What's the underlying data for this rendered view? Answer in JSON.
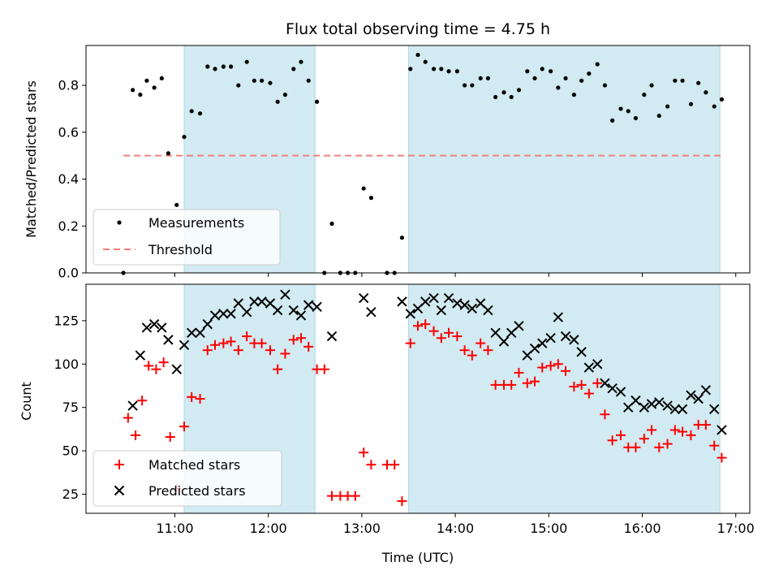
{
  "chart_data": {
    "title": "Flux total observing time = 4.75 h",
    "type": "scatter",
    "xlabel": "Time (UTC)",
    "xlim": [
      10.05,
      17.15
    ],
    "x_ticks": [
      {
        "value": 11,
        "label": "11:00"
      },
      {
        "value": 12,
        "label": "12:00"
      },
      {
        "value": 13,
        "label": "13:00"
      },
      {
        "value": 14,
        "label": "14:00"
      },
      {
        "value": 15,
        "label": "15:00"
      },
      {
        "value": 16,
        "label": "16:00"
      },
      {
        "value": 17,
        "label": "17:00"
      }
    ],
    "shaded_intervals": [
      [
        11.1,
        12.5
      ],
      [
        13.5,
        16.83
      ]
    ],
    "shade_color": "#add8e6",
    "top": {
      "ylabel": "Matched/Predicted stars",
      "ylim": [
        0,
        0.97
      ],
      "y_ticks": [
        0.0,
        0.2,
        0.4,
        0.6,
        0.8
      ],
      "y_tick_labels": [
        "0.0",
        "0.2",
        "0.4",
        "0.6",
        "0.8"
      ],
      "threshold": {
        "name": "Threshold",
        "value": 0.5,
        "x_range": [
          10.45,
          16.85
        ],
        "color": "#f08080"
      },
      "measurements": {
        "name": "Measurements",
        "color": "#000000",
        "points": [
          [
            10.45,
            0.0
          ],
          [
            10.55,
            0.78
          ],
          [
            10.63,
            0.76
          ],
          [
            10.7,
            0.82
          ],
          [
            10.78,
            0.79
          ],
          [
            10.86,
            0.83
          ],
          [
            10.93,
            0.51
          ],
          [
            11.02,
            0.29
          ],
          [
            11.1,
            0.58
          ],
          [
            11.18,
            0.69
          ],
          [
            11.27,
            0.68
          ],
          [
            11.35,
            0.88
          ],
          [
            11.43,
            0.87
          ],
          [
            11.52,
            0.88
          ],
          [
            11.6,
            0.88
          ],
          [
            11.68,
            0.8
          ],
          [
            11.77,
            0.9
          ],
          [
            11.85,
            0.82
          ],
          [
            11.93,
            0.82
          ],
          [
            12.02,
            0.81
          ],
          [
            12.1,
            0.73
          ],
          [
            12.18,
            0.76
          ],
          [
            12.27,
            0.87
          ],
          [
            12.35,
            0.9
          ],
          [
            12.43,
            0.82
          ],
          [
            12.52,
            0.73
          ],
          [
            12.6,
            0.0
          ],
          [
            12.68,
            0.21
          ],
          [
            12.77,
            0.0
          ],
          [
            12.85,
            0.0
          ],
          [
            12.93,
            0.0
          ],
          [
            13.02,
            0.36
          ],
          [
            13.1,
            0.32
          ],
          [
            13.27,
            0.0
          ],
          [
            13.35,
            0.0
          ],
          [
            13.43,
            0.15
          ],
          [
            13.52,
            0.87
          ],
          [
            13.6,
            0.93
          ],
          [
            13.68,
            0.9
          ],
          [
            13.77,
            0.87
          ],
          [
            13.85,
            0.87
          ],
          [
            13.93,
            0.86
          ],
          [
            14.02,
            0.86
          ],
          [
            14.1,
            0.8
          ],
          [
            14.18,
            0.8
          ],
          [
            14.27,
            0.83
          ],
          [
            14.35,
            0.83
          ],
          [
            14.43,
            0.75
          ],
          [
            14.52,
            0.77
          ],
          [
            14.6,
            0.75
          ],
          [
            14.68,
            0.78
          ],
          [
            14.77,
            0.86
          ],
          [
            14.85,
            0.83
          ],
          [
            14.93,
            0.87
          ],
          [
            15.02,
            0.86
          ],
          [
            15.1,
            0.79
          ],
          [
            15.18,
            0.83
          ],
          [
            15.27,
            0.76
          ],
          [
            15.35,
            0.82
          ],
          [
            15.43,
            0.85
          ],
          [
            15.52,
            0.89
          ],
          [
            15.6,
            0.8
          ],
          [
            15.68,
            0.65
          ],
          [
            15.77,
            0.7
          ],
          [
            15.85,
            0.69
          ],
          [
            15.93,
            0.66
          ],
          [
            16.02,
            0.76
          ],
          [
            16.1,
            0.8
          ],
          [
            16.18,
            0.67
          ],
          [
            16.27,
            0.71
          ],
          [
            16.35,
            0.82
          ],
          [
            16.43,
            0.82
          ],
          [
            16.52,
            0.72
          ],
          [
            16.6,
            0.81
          ],
          [
            16.68,
            0.77
          ],
          [
            16.77,
            0.71
          ],
          [
            16.85,
            0.74
          ]
        ]
      }
    },
    "bottom": {
      "ylabel": "Count",
      "ylim": [
        14,
        146
      ],
      "y_ticks": [
        25,
        50,
        75,
        100,
        125
      ],
      "matched": {
        "name": "Matched stars",
        "color": "#ff0000",
        "points": [
          [
            10.5,
            69
          ],
          [
            10.58,
            59
          ],
          [
            10.65,
            79
          ],
          [
            10.72,
            99
          ],
          [
            10.8,
            97
          ],
          [
            10.88,
            101
          ],
          [
            10.95,
            58
          ],
          [
            11.02,
            28
          ],
          [
            11.1,
            64
          ],
          [
            11.18,
            81
          ],
          [
            11.27,
            80
          ],
          [
            11.35,
            108
          ],
          [
            11.43,
            111
          ],
          [
            11.52,
            112
          ],
          [
            11.6,
            113
          ],
          [
            11.68,
            108
          ],
          [
            11.77,
            116
          ],
          [
            11.85,
            112
          ],
          [
            11.93,
            112
          ],
          [
            12.02,
            108
          ],
          [
            12.1,
            97
          ],
          [
            12.18,
            106
          ],
          [
            12.27,
            114
          ],
          [
            12.35,
            115
          ],
          [
            12.43,
            110
          ],
          [
            12.52,
            97
          ],
          [
            12.6,
            97
          ],
          [
            12.68,
            24
          ],
          [
            12.77,
            24
          ],
          [
            12.85,
            24
          ],
          [
            12.93,
            24
          ],
          [
            13.02,
            49
          ],
          [
            13.1,
            42
          ],
          [
            13.27,
            42
          ],
          [
            13.35,
            42
          ],
          [
            13.43,
            21
          ],
          [
            13.52,
            112
          ],
          [
            13.6,
            122
          ],
          [
            13.68,
            123
          ],
          [
            13.77,
            119
          ],
          [
            13.85,
            115
          ],
          [
            13.93,
            118
          ],
          [
            14.02,
            116
          ],
          [
            14.1,
            108
          ],
          [
            14.18,
            105
          ],
          [
            14.27,
            112
          ],
          [
            14.35,
            108
          ],
          [
            14.43,
            88
          ],
          [
            14.52,
            88
          ],
          [
            14.6,
            88
          ],
          [
            14.68,
            95
          ],
          [
            14.77,
            89
          ],
          [
            14.85,
            90
          ],
          [
            14.93,
            98
          ],
          [
            15.02,
            99
          ],
          [
            15.1,
            100
          ],
          [
            15.18,
            96
          ],
          [
            15.27,
            87
          ],
          [
            15.35,
            88
          ],
          [
            15.43,
            83
          ],
          [
            15.52,
            89
          ],
          [
            15.6,
            71
          ],
          [
            15.68,
            56
          ],
          [
            15.77,
            59
          ],
          [
            15.85,
            52
          ],
          [
            15.93,
            52
          ],
          [
            16.02,
            57
          ],
          [
            16.1,
            62
          ],
          [
            16.18,
            52
          ],
          [
            16.27,
            54
          ],
          [
            16.35,
            62
          ],
          [
            16.43,
            61
          ],
          [
            16.52,
            59
          ],
          [
            16.6,
            65
          ],
          [
            16.68,
            65
          ],
          [
            16.77,
            53
          ],
          [
            16.85,
            46
          ]
        ]
      },
      "predicted": {
        "name": "Predicted stars",
        "color": "#000000",
        "points": [
          [
            10.55,
            76
          ],
          [
            10.63,
            105
          ],
          [
            10.7,
            121
          ],
          [
            10.78,
            123
          ],
          [
            10.86,
            121
          ],
          [
            10.93,
            114
          ],
          [
            11.02,
            97
          ],
          [
            11.1,
            111
          ],
          [
            11.18,
            118
          ],
          [
            11.27,
            118
          ],
          [
            11.35,
            123
          ],
          [
            11.43,
            128
          ],
          [
            11.52,
            129
          ],
          [
            11.6,
            129
          ],
          [
            11.68,
            135
          ],
          [
            11.77,
            130
          ],
          [
            11.85,
            136
          ],
          [
            11.93,
            136
          ],
          [
            12.02,
            135
          ],
          [
            12.1,
            131
          ],
          [
            12.18,
            140
          ],
          [
            12.27,
            131
          ],
          [
            12.35,
            128
          ],
          [
            12.43,
            134
          ],
          [
            12.52,
            133
          ],
          [
            12.68,
            116
          ],
          [
            13.02,
            138
          ],
          [
            13.1,
            130
          ],
          [
            13.43,
            136
          ],
          [
            13.52,
            129
          ],
          [
            13.6,
            132
          ],
          [
            13.68,
            136
          ],
          [
            13.77,
            138
          ],
          [
            13.85,
            131
          ],
          [
            13.93,
            138
          ],
          [
            14.02,
            135
          ],
          [
            14.1,
            134
          ],
          [
            14.18,
            132
          ],
          [
            14.27,
            135
          ],
          [
            14.35,
            131
          ],
          [
            14.43,
            118
          ],
          [
            14.52,
            113
          ],
          [
            14.6,
            118
          ],
          [
            14.68,
            122
          ],
          [
            14.77,
            105
          ],
          [
            14.85,
            109
          ],
          [
            14.93,
            112
          ],
          [
            15.02,
            115
          ],
          [
            15.1,
            127
          ],
          [
            15.18,
            116
          ],
          [
            15.27,
            114
          ],
          [
            15.35,
            107
          ],
          [
            15.43,
            98
          ],
          [
            15.52,
            100
          ],
          [
            15.6,
            89
          ],
          [
            15.68,
            86
          ],
          [
            15.77,
            84
          ],
          [
            15.85,
            75
          ],
          [
            15.93,
            79
          ],
          [
            16.02,
            75
          ],
          [
            16.1,
            77
          ],
          [
            16.18,
            78
          ],
          [
            16.27,
            76
          ],
          [
            16.35,
            74
          ],
          [
            16.43,
            74
          ],
          [
            16.52,
            82
          ],
          [
            16.6,
            80
          ],
          [
            16.68,
            85
          ],
          [
            16.77,
            74
          ],
          [
            16.85,
            62
          ]
        ]
      }
    }
  }
}
